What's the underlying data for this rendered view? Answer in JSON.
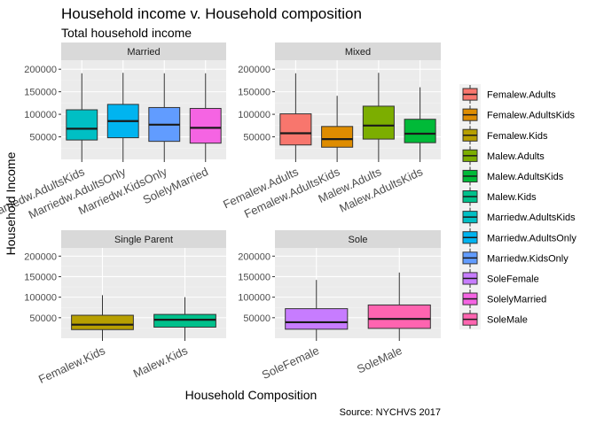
{
  "chart_data": {
    "type": "boxplot",
    "title": "Household income v. Household composition",
    "subtitle": "Total household income",
    "xlabel": "Household Composition",
    "ylabel": "Household Income",
    "caption": "Source: NYCHVS 2017",
    "ylim": [
      0,
      220000
    ],
    "y_ticks": [
      50000,
      100000,
      150000,
      200000
    ],
    "y_tick_labels": [
      "50000",
      "100000",
      "150000",
      "200000"
    ],
    "grid": true,
    "legend_position": "right",
    "legend": [
      {
        "label": "Femalew.Adults",
        "color": "#F8766D"
      },
      {
        "label": "Femalew.AdultsKids",
        "color": "#DE8C00"
      },
      {
        "label": "Femalew.Kids",
        "color": "#B79F00"
      },
      {
        "label": "Malew.Adults",
        "color": "#7CAE00"
      },
      {
        "label": "Malew.AdultsKids",
        "color": "#00BA38"
      },
      {
        "label": "Malew.Kids",
        "color": "#00C08B"
      },
      {
        "label": "Marriedw.AdultsKids",
        "color": "#00BFC4"
      },
      {
        "label": "Marriedw.AdultsOnly",
        "color": "#00B4F0"
      },
      {
        "label": "Marriedw.KidsOnly",
        "color": "#619CFF"
      },
      {
        "label": "SoleFemale",
        "color": "#C77CFF"
      },
      {
        "label": "SolelyMarried",
        "color": "#F564E3"
      },
      {
        "label": "SoleMale",
        "color": "#FF64B0"
      }
    ],
    "facets": [
      {
        "name": "Married",
        "boxes": [
          {
            "category": "Marriedw.AdultsKids",
            "color": "#00BFC4",
            "whisker_low": 0,
            "q1": 43000,
            "median": 68000,
            "q3": 110000,
            "whisker_high": 191000
          },
          {
            "category": "Marriedw.AdultsOnly",
            "color": "#00B4F0",
            "whisker_low": 0,
            "q1": 48000,
            "median": 85000,
            "q3": 122000,
            "whisker_high": 192000
          },
          {
            "category": "Marriedw.KidsOnly",
            "color": "#619CFF",
            "whisker_low": 0,
            "q1": 40000,
            "median": 77000,
            "q3": 115000,
            "whisker_high": 191000
          },
          {
            "category": "SolelyMarried",
            "color": "#F564E3",
            "whisker_low": 0,
            "q1": 36000,
            "median": 70000,
            "q3": 113000,
            "whisker_high": 191000
          }
        ]
      },
      {
        "name": "Mixed",
        "boxes": [
          {
            "category": "Femalew.Adults",
            "color": "#F8766D",
            "whisker_low": 0,
            "q1": 32000,
            "median": 58000,
            "q3": 101000,
            "whisker_high": 191000
          },
          {
            "category": "Femalew.AdultsKids",
            "color": "#DE8C00",
            "whisker_low": 0,
            "q1": 27000,
            "median": 45000,
            "q3": 73000,
            "whisker_high": 141000
          },
          {
            "category": "Malew.Adults",
            "color": "#7CAE00",
            "whisker_low": 0,
            "q1": 45000,
            "median": 75000,
            "q3": 118000,
            "whisker_high": 192000
          },
          {
            "category": "Malew.AdultsKids",
            "color": "#00BA38",
            "whisker_low": 0,
            "q1": 37000,
            "median": 57000,
            "q3": 89000,
            "whisker_high": 160000
          }
        ]
      },
      {
        "name": "Single Parent",
        "boxes": [
          {
            "category": "Femalew.Kids",
            "color": "#B79F00",
            "whisker_low": 0,
            "q1": 21000,
            "median": 33000,
            "q3": 56000,
            "whisker_high": 105000
          },
          {
            "category": "Malew.Kids",
            "color": "#00C08B",
            "whisker_low": 0,
            "q1": 27000,
            "median": 45000,
            "q3": 58000,
            "whisker_high": 100000
          }
        ]
      },
      {
        "name": "Sole",
        "boxes": [
          {
            "category": "SoleFemale",
            "color": "#C77CFF",
            "whisker_low": 0,
            "q1": 22000,
            "median": 39000,
            "q3": 72000,
            "whisker_high": 142000
          },
          {
            "category": "SoleMale",
            "color": "#FF64B0",
            "whisker_low": 0,
            "q1": 24000,
            "median": 47000,
            "q3": 81000,
            "whisker_high": 160000
          }
        ]
      }
    ]
  }
}
